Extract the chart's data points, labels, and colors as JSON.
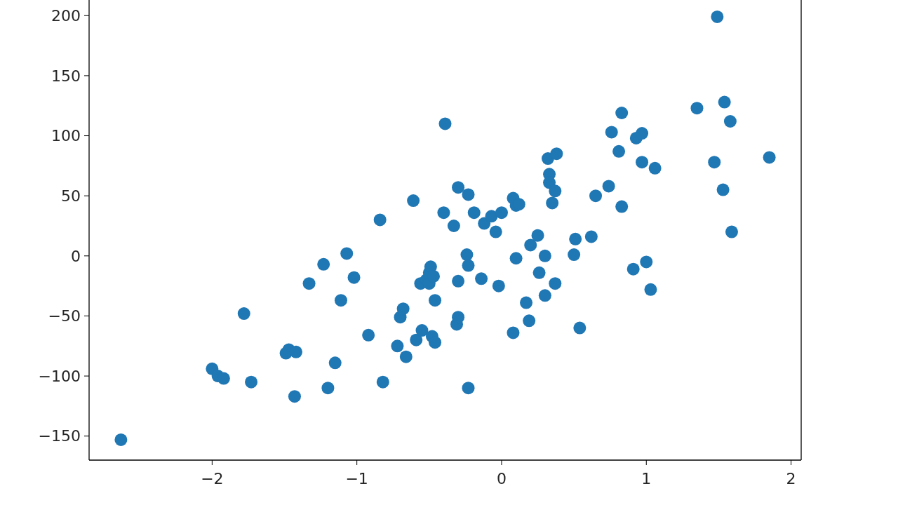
{
  "chart_data": {
    "type": "scatter",
    "marker": "circle",
    "color": "#1f77b4",
    "xlim": [
      -2.85,
      2.07
    ],
    "ylim": [
      -170,
      213
    ],
    "xticks": [
      {
        "value": -2,
        "label": "−2"
      },
      {
        "value": -1,
        "label": "−1"
      },
      0,
      1,
      2
    ],
    "yticks": [
      {
        "value": -150,
        "label": "−150"
      },
      {
        "value": -100,
        "label": "−100"
      },
      {
        "value": -50,
        "label": "−50"
      },
      0,
      50,
      100,
      150,
      200
    ],
    "x": [
      -2.63,
      -2.0,
      -1.96,
      -1.92,
      -1.78,
      -1.73,
      -1.49,
      -1.47,
      -1.42,
      -1.43,
      -1.33,
      -1.23,
      -1.2,
      -1.15,
      -1.11,
      -1.07,
      -1.02,
      -0.92,
      -0.84,
      -0.82,
      -0.72,
      -0.7,
      -0.68,
      -0.66,
      -0.61,
      -0.59,
      -0.55,
      -0.56,
      -0.52,
      -0.5,
      -0.49,
      -0.5,
      -0.47,
      -0.48,
      -0.46,
      -0.46,
      -0.4,
      -0.39,
      -0.33,
      -0.31,
      -0.3,
      -0.3,
      -0.3,
      -0.24,
      -0.23,
      -0.23,
      -0.23,
      -0.19,
      -0.14,
      -0.12,
      -0.07,
      -0.04,
      -0.02,
      0.0,
      0.08,
      0.1,
      0.12,
      0.08,
      0.1,
      0.17,
      0.19,
      0.2,
      0.25,
      0.26,
      0.3,
      0.3,
      0.32,
      0.33,
      0.33,
      0.35,
      0.37,
      0.37,
      0.38,
      0.5,
      0.51,
      0.54,
      0.62,
      0.65,
      0.74,
      0.76,
      0.81,
      0.83,
      0.83,
      0.91,
      0.93,
      0.97,
      0.97,
      1.0,
      1.03,
      1.06,
      1.35,
      1.47,
      1.49,
      1.53,
      1.54,
      1.58,
      1.59,
      1.85
    ],
    "values": [
      -153,
      -94,
      -100,
      -102,
      -48,
      -105,
      -81,
      -78,
      -80,
      -117,
      -23,
      -7,
      -110,
      -89,
      -37,
      2,
      -18,
      -66,
      30,
      -105,
      -75,
      -51,
      -44,
      -84,
      46,
      -70,
      -62,
      -23,
      -20,
      -14,
      -9,
      -23,
      -17,
      -67,
      -72,
      -37,
      36,
      110,
      25,
      -57,
      -51,
      -21,
      57,
      1,
      -8,
      -110,
      51,
      36,
      -19,
      27,
      33,
      20,
      -25,
      36,
      48,
      42,
      43,
      -64,
      -2,
      -39,
      -54,
      9,
      17,
      -14,
      0,
      -33,
      81,
      68,
      61,
      44,
      -23,
      54,
      85,
      1,
      14,
      -60,
      16,
      50,
      58,
      103,
      87,
      119,
      41,
      -11,
      98,
      102,
      78,
      -5,
      -28,
      73,
      123,
      78,
      199,
      55,
      128,
      112,
      20,
      82
    ]
  }
}
